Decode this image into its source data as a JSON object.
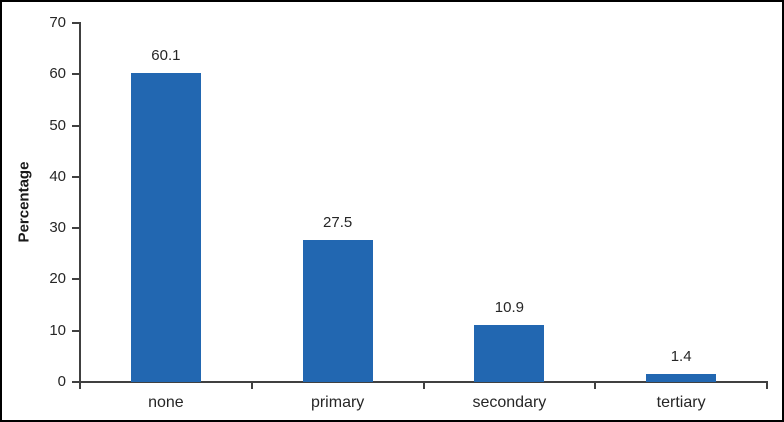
{
  "chart_data": {
    "type": "bar",
    "categories": [
      "none",
      "primary",
      "secondary",
      "tertiary"
    ],
    "values": [
      60.1,
      27.5,
      10.9,
      1.4
    ],
    "value_labels": [
      "60.1",
      "27.5",
      "10.9",
      "1.4"
    ],
    "title": "",
    "xlabel": "",
    "ylabel": "Percentage",
    "ylim": [
      0,
      70
    ],
    "ytick_step": 10,
    "ytick_labels": [
      "0",
      "10",
      "20",
      "30",
      "40",
      "50",
      "60",
      "70"
    ],
    "grid": "off",
    "legend": "none",
    "colors": {
      "bar": "#2267B1",
      "axis": "#404040",
      "text": "#262626",
      "frame_border": "#000000",
      "background": "#ffffff"
    }
  }
}
